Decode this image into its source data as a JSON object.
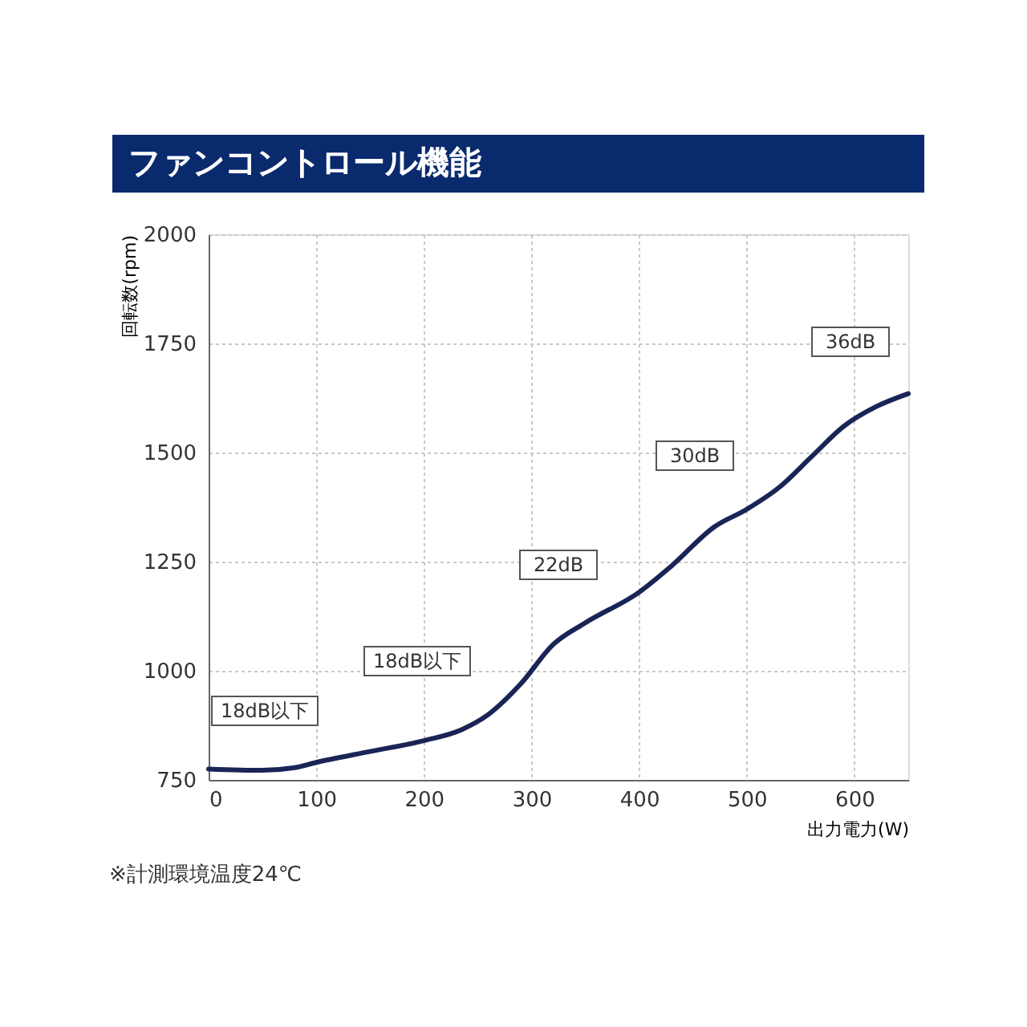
{
  "chart_data": {
    "type": "line",
    "title": "ファンコントロール機能",
    "xlabel": "出力電力(W)",
    "ylabel": "回転数(rpm)",
    "x": [
      0,
      50,
      80,
      100,
      150,
      200,
      235,
      260,
      290,
      320,
      350,
      400,
      430,
      470,
      500,
      530,
      560,
      590,
      620,
      650
    ],
    "series": [
      {
        "color": "#1a2456",
        "values": [
          775,
          772,
          778,
          790,
          815,
          840,
          865,
          900,
          970,
          1060,
          1110,
          1180,
          1240,
          1330,
          1370,
          1420,
          1490,
          1560,
          1605,
          1635
        ]
      }
    ],
    "xlim": [
      0,
      650
    ],
    "xticks": [
      0,
      100,
      200,
      300,
      400,
      500,
      600
    ],
    "ylim": [
      750,
      2000
    ],
    "yticks": [
      750,
      1000,
      1250,
      1500,
      1750,
      2000
    ],
    "grid": true,
    "line_style": "solid",
    "marker": "none",
    "annotations": [
      "18dB以下",
      "18dB以下",
      "22dB",
      "30dB",
      "36dB",
      "※計測環境温度24℃"
    ]
  }
}
